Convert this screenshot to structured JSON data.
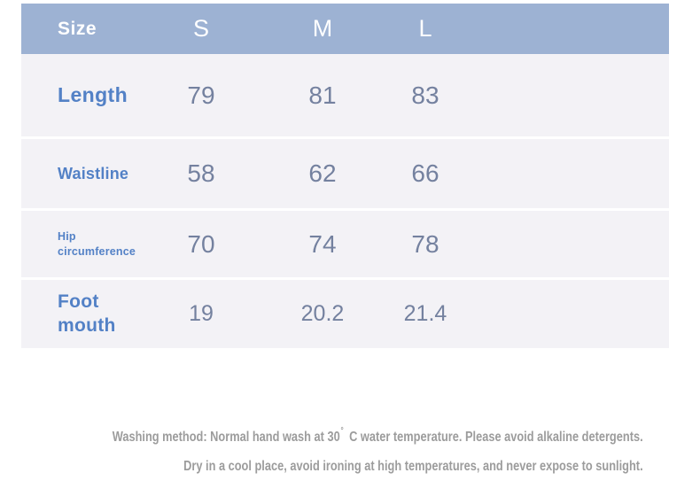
{
  "chart_data": {
    "type": "table",
    "columns": [
      "Size",
      "S",
      "M",
      "L"
    ],
    "rows": [
      {
        "label": "Length",
        "values": [
          "79",
          "81",
          "83"
        ]
      },
      {
        "label": "Waistline",
        "values": [
          "58",
          "62",
          "66"
        ]
      },
      {
        "label": "Hip circumference",
        "values": [
          "70",
          "74",
          "78"
        ]
      },
      {
        "label": "Foot mouth",
        "values": [
          "19",
          "20.2",
          "21.4"
        ]
      }
    ],
    "layout_hints": {
      "header_background": "#9db2d3",
      "row_background": "#f3f2f6",
      "label_color": "#5381c6",
      "value_color": "#74819f",
      "separator_color": "#ffffff"
    }
  },
  "care_instructions": {
    "line1_prefix": "Washing method: Normal hand wash at 30",
    "line1_degree_symbol": "°",
    "line1_suffix": "C water temperature. Please avoid alkaline detergents.",
    "line2": "Dry in a cool place, avoid ironing at high temperatures, and never expose to sunlight.",
    "text_color": "#9c9c9c"
  }
}
